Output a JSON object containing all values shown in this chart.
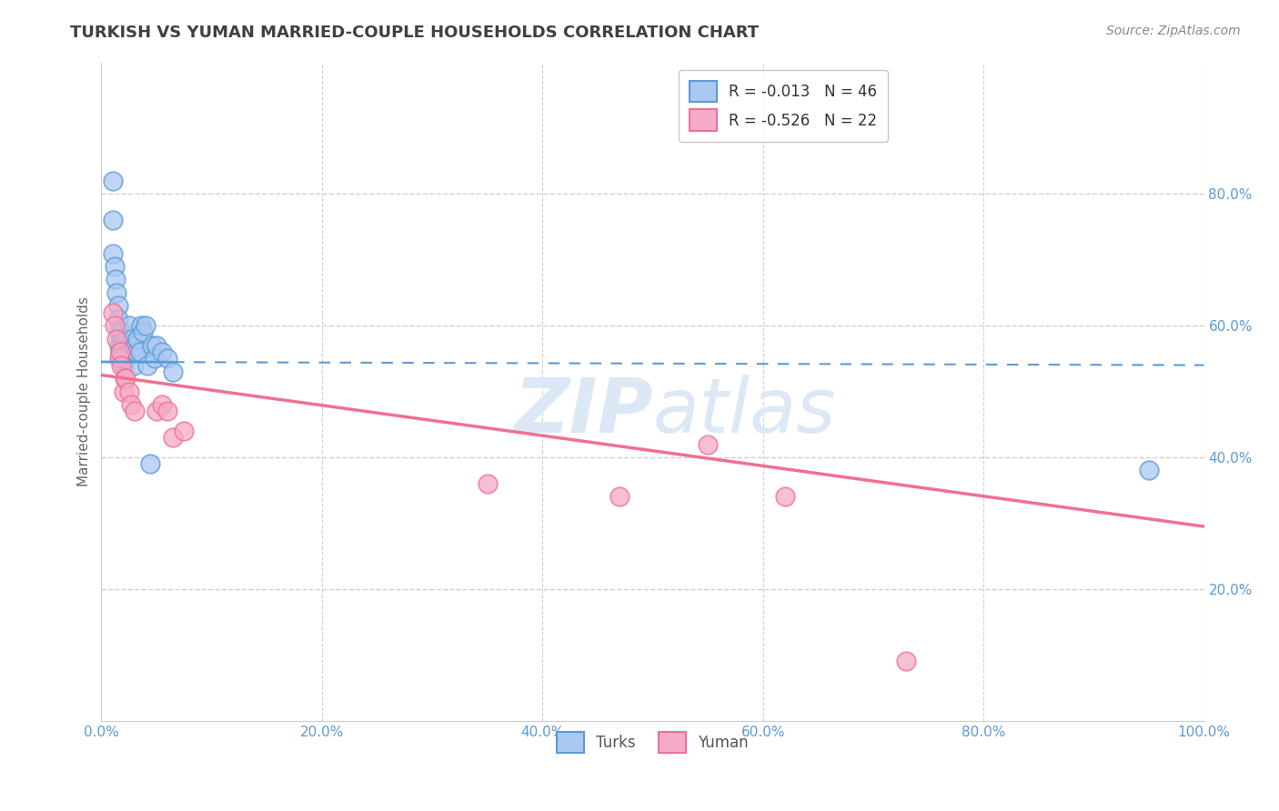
{
  "title": "TURKISH VS YUMAN MARRIED-COUPLE HOUSEHOLDS CORRELATION CHART",
  "source": "Source: ZipAtlas.com",
  "xlabel": "",
  "ylabel": "Married-couple Households",
  "xlim": [
    0.0,
    1.0
  ],
  "ylim": [
    0.0,
    1.0
  ],
  "xtick_labels": [
    "0.0%",
    "20.0%",
    "40.0%",
    "60.0%",
    "80.0%",
    "100.0%"
  ],
  "xtick_vals": [
    0.0,
    0.2,
    0.4,
    0.6,
    0.8,
    1.0
  ],
  "ytick_labels": [
    "20.0%",
    "40.0%",
    "60.0%",
    "80.0%"
  ],
  "ytick_vals": [
    0.2,
    0.4,
    0.6,
    0.8
  ],
  "turks_x": [
    0.01,
    0.01,
    0.01,
    0.012,
    0.013,
    0.014,
    0.015,
    0.015,
    0.016,
    0.016,
    0.017,
    0.017,
    0.018,
    0.018,
    0.019,
    0.019,
    0.02,
    0.02,
    0.021,
    0.021,
    0.022,
    0.022,
    0.023,
    0.025,
    0.025,
    0.026,
    0.027,
    0.028,
    0.029,
    0.03,
    0.031,
    0.032,
    0.033,
    0.035,
    0.036,
    0.038,
    0.04,
    0.042,
    0.044,
    0.046,
    0.048,
    0.05,
    0.055,
    0.06,
    0.065,
    0.95
  ],
  "turks_y": [
    0.82,
    0.76,
    0.71,
    0.69,
    0.67,
    0.65,
    0.63,
    0.61,
    0.59,
    0.57,
    0.56,
    0.55,
    0.58,
    0.57,
    0.59,
    0.56,
    0.58,
    0.54,
    0.57,
    0.55,
    0.57,
    0.56,
    0.58,
    0.6,
    0.57,
    0.57,
    0.56,
    0.58,
    0.54,
    0.56,
    0.57,
    0.56,
    0.58,
    0.56,
    0.6,
    0.59,
    0.6,
    0.54,
    0.39,
    0.57,
    0.55,
    0.57,
    0.56,
    0.55,
    0.53,
    0.38
  ],
  "yuman_x": [
    0.01,
    0.012,
    0.014,
    0.016,
    0.017,
    0.018,
    0.02,
    0.021,
    0.022,
    0.025,
    0.027,
    0.03,
    0.05,
    0.055,
    0.06,
    0.065,
    0.35,
    0.47,
    0.55,
    0.62,
    0.73,
    0.075
  ],
  "yuman_y": [
    0.62,
    0.6,
    0.58,
    0.55,
    0.56,
    0.54,
    0.5,
    0.52,
    0.52,
    0.5,
    0.48,
    0.47,
    0.47,
    0.48,
    0.47,
    0.43,
    0.36,
    0.34,
    0.42,
    0.34,
    0.09,
    0.44
  ],
  "turks_R": -0.013,
  "turks_N": 46,
  "yuman_R": -0.526,
  "yuman_N": 22,
  "turks_color": "#aac8f0",
  "yuman_color": "#f5aac8",
  "turks_line_color": "#5b9bd5",
  "yuman_line_color": "#f07090",
  "right_axis_color": "#5b9bd5",
  "background_color": "#ffffff",
  "grid_color": "#d0d0d0",
  "title_color": "#404040",
  "watermark_color": "#dce8f5",
  "turks_regression_start_y": 0.545,
  "turks_regression_end_y": 0.54,
  "yuman_regression_start_y": 0.525,
  "yuman_regression_end_y": 0.295
}
